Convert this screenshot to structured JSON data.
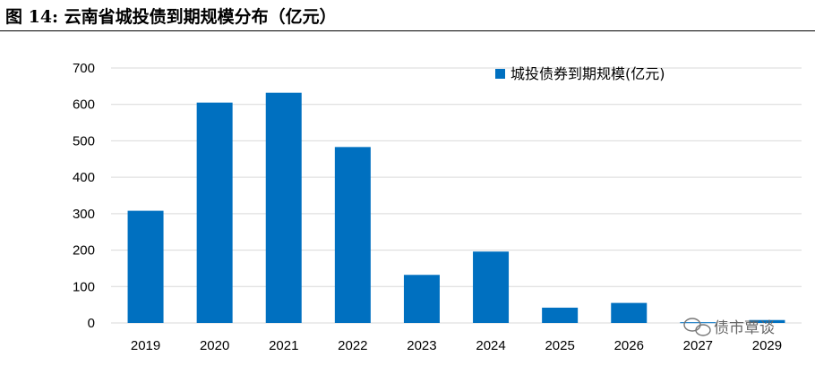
{
  "figure_title": "图 14:  云南省城投债到期规模分布（亿元）",
  "watermark": "债市覃谈",
  "chart_data": {
    "type": "bar",
    "categories": [
      "2019",
      "2020",
      "2021",
      "2022",
      "2023",
      "2024",
      "2025",
      "2026",
      "2027",
      "2029"
    ],
    "series": [
      {
        "name": "城投债券到期规模(亿元)",
        "values": [
          308,
          605,
          632,
          483,
          132,
          196,
          42,
          55,
          2,
          8
        ]
      }
    ],
    "yticks": [
      0,
      100,
      200,
      300,
      400,
      500,
      600,
      700
    ],
    "ylim": [
      0,
      700
    ],
    "grid": true,
    "legend_position": "top-right",
    "colors": {
      "bar": "#0070c0",
      "grid": "#d9d9d9"
    }
  }
}
